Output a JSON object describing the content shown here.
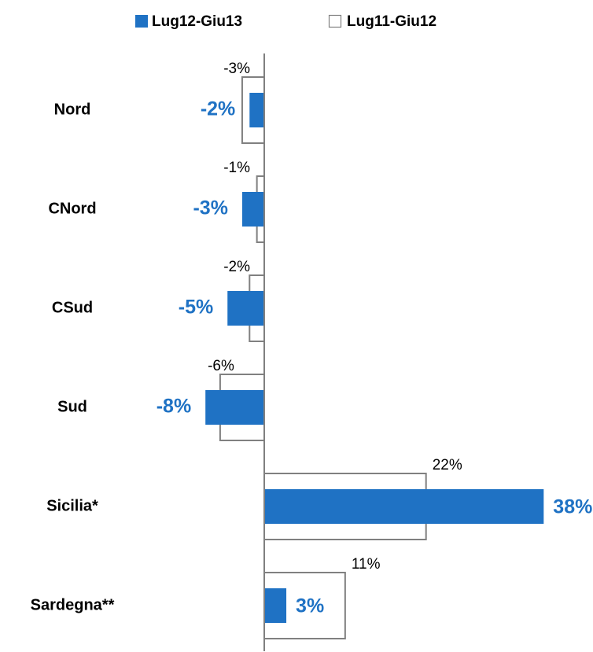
{
  "chart_data": {
    "type": "hbar",
    "categories": [
      "Nord",
      "CNord",
      "CSud",
      "Sud",
      "Sicilia*",
      "Sardegna**"
    ],
    "series": [
      {
        "name": "Lug12-Giu13",
        "color": "#1f72c4",
        "style": "filled",
        "values": [
          -2,
          -3,
          -5,
          -8,
          38,
          3
        ],
        "value_labels": [
          "-2%",
          "-3%",
          "-5%",
          "-8%",
          "38%",
          "3%"
        ]
      },
      {
        "name": "Lug11-Giu12",
        "color": "#808080",
        "style": "outline",
        "values": [
          -3,
          -1,
          -2,
          -6,
          22,
          11
        ],
        "value_labels": [
          "-3%",
          "-1%",
          "-2%",
          "-6%",
          "22%",
          "11%"
        ]
      }
    ],
    "legend": "top"
  }
}
